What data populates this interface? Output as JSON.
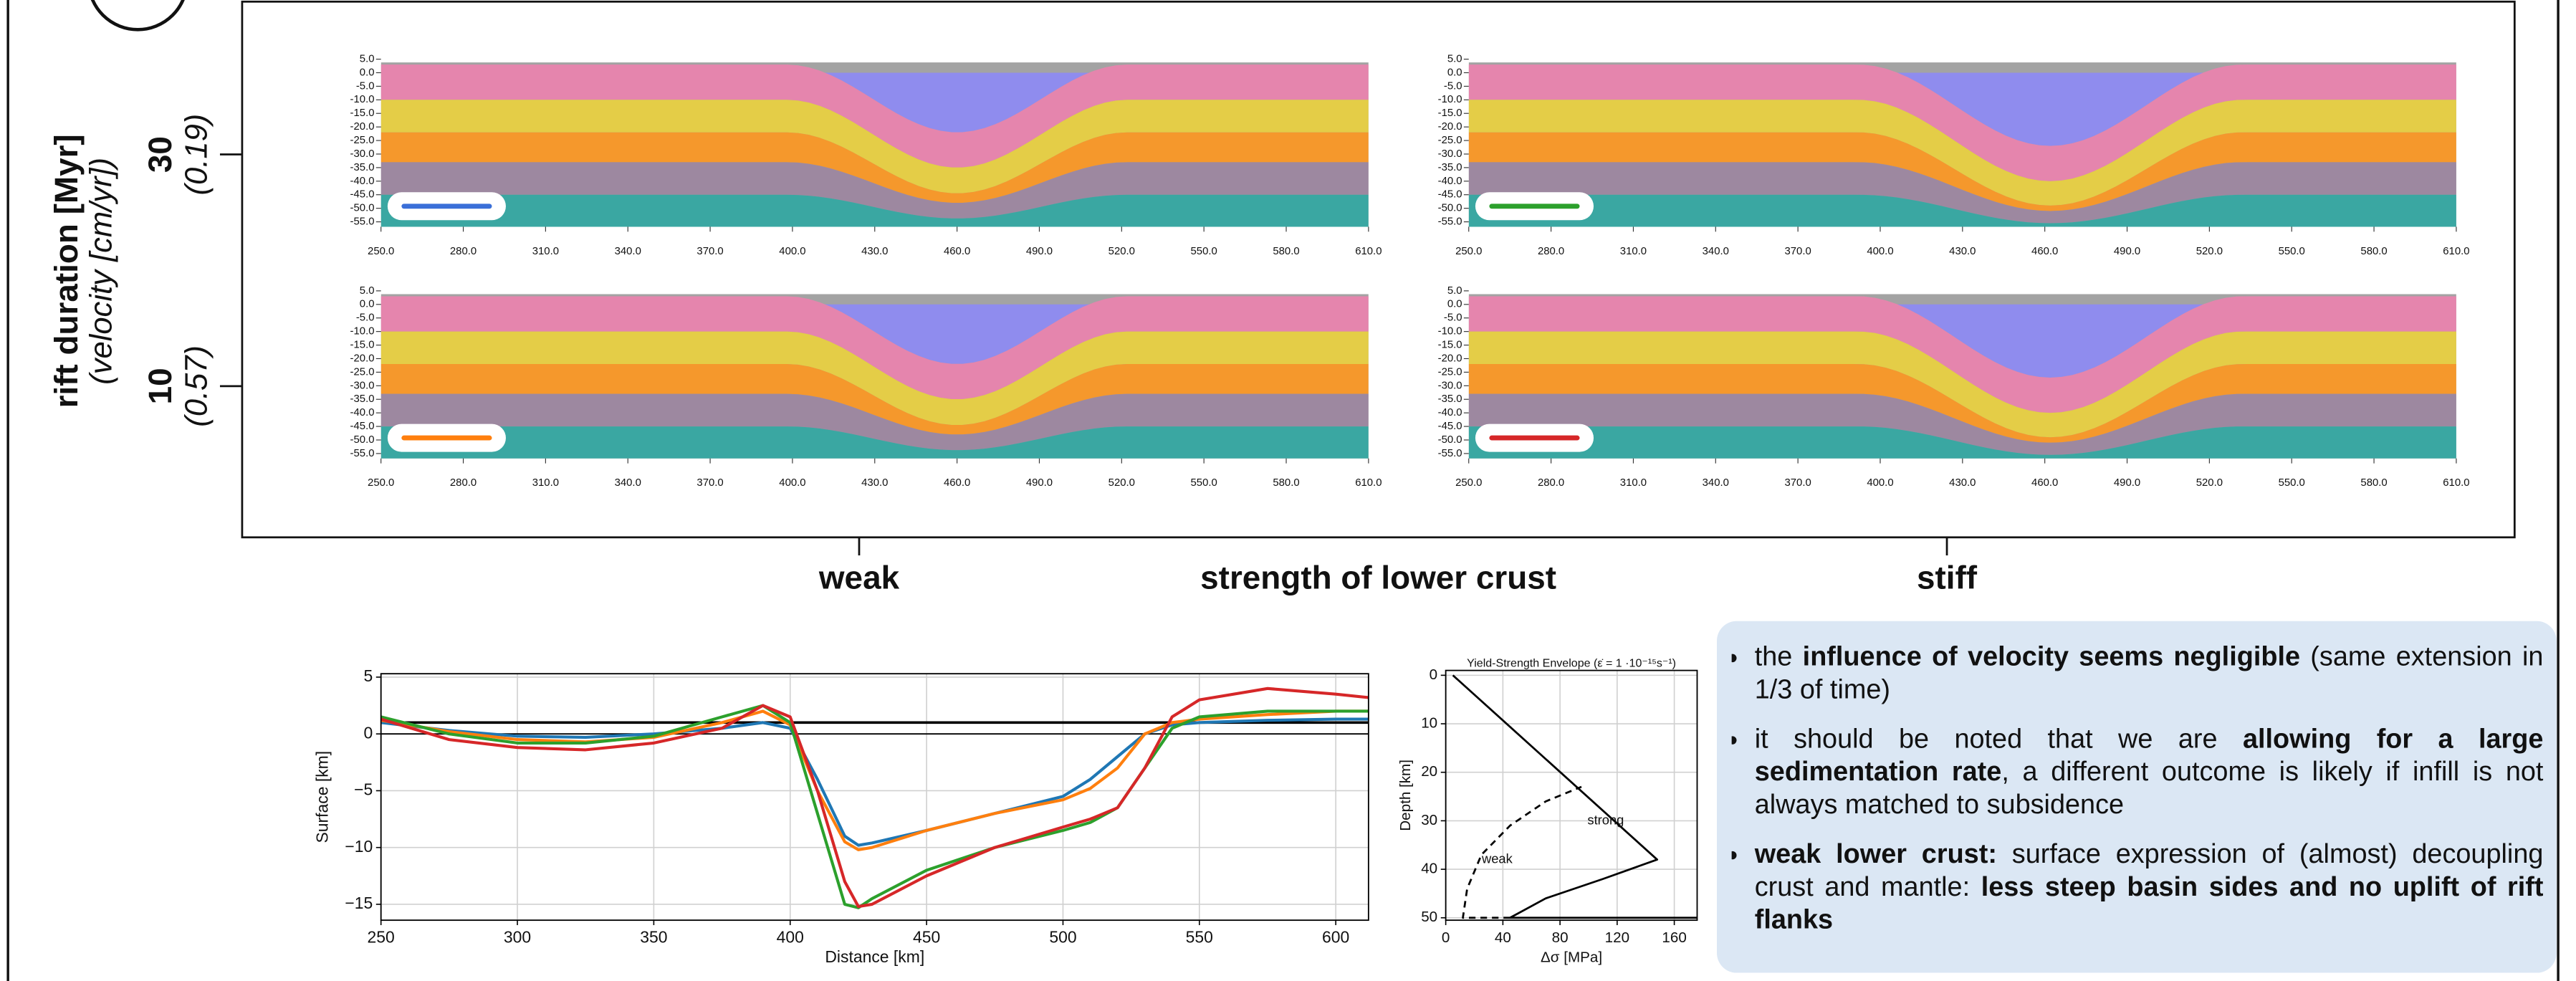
{
  "row_axis_title": "rift duration [Myr]",
  "row_axis_subtitle": "(velocity [cm/yr])",
  "row_labels": [
    {
      "duration": "30",
      "velocity": "(0.19)"
    },
    {
      "duration": "10",
      "velocity": "(0.57)"
    }
  ],
  "column_axis_title": "strength of lower crust",
  "column_labels": [
    "weak",
    "stiff"
  ],
  "model_panels": {
    "xlim": [
      250,
      610
    ],
    "ylim": [
      -55,
      5
    ],
    "xticks": [
      {
        "value": 250,
        "label": "250.0"
      },
      {
        "value": 280,
        "label": "280.0"
      },
      {
        "value": 310,
        "label": "310.0"
      },
      {
        "value": 340,
        "label": "340.0"
      },
      {
        "value": 370,
        "label": "370.0"
      },
      {
        "value": 400,
        "label": "400.0"
      },
      {
        "value": 430,
        "label": "430.0"
      },
      {
        "value": 460,
        "label": "460.0"
      },
      {
        "value": 490,
        "label": "490.0"
      },
      {
        "value": 520,
        "label": "520.0"
      },
      {
        "value": 550,
        "label": "550.0"
      },
      {
        "value": 580,
        "label": "580.0"
      },
      {
        "value": 610,
        "label": "610.0"
      }
    ],
    "yticks": [
      {
        "value": 5,
        "label": "5.0"
      },
      {
        "value": 0,
        "label": "0.0"
      },
      {
        "value": -5,
        "label": "-5.0"
      },
      {
        "value": -10,
        "label": "-10.0"
      },
      {
        "value": -15,
        "label": "-15.0"
      },
      {
        "value": -20,
        "label": "-20.0"
      },
      {
        "value": -25,
        "label": "-25.0"
      },
      {
        "value": -30,
        "label": "-30.0"
      },
      {
        "value": -35,
        "label": "-35.0"
      },
      {
        "value": -40,
        "label": "-40.0"
      },
      {
        "value": -45,
        "label": "-45.0"
      },
      {
        "value": -50,
        "label": "-50.0"
      },
      {
        "value": -55,
        "label": "-55.0"
      }
    ],
    "panels": [
      {
        "color": "#3a6fd8"
      },
      {
        "color": "#2ca02c"
      },
      {
        "color": "#ff7f0e"
      },
      {
        "color": "#d62728"
      }
    ]
  },
  "chart_data": [
    {
      "type": "line",
      "xlabel": "Distance [km]",
      "ylabel": "Surface [km]",
      "grid": true,
      "x": [
        250,
        275,
        300,
        325,
        350,
        375,
        390,
        400,
        410,
        420,
        425,
        430,
        450,
        475,
        500,
        510,
        520,
        530,
        540,
        550,
        575,
        600,
        612
      ],
      "series": [
        {
          "color": "#1f77b4",
          "values": [
            1.0,
            0.3,
            -0.2,
            -0.3,
            0.0,
            0.5,
            1.0,
            0.5,
            -4,
            -9,
            -9.8,
            -9.6,
            -8.5,
            -7,
            -5.5,
            -4,
            -2,
            0,
            0.8,
            1.0,
            1.2,
            1.3,
            1.3
          ]
        },
        {
          "color": "#ff7f0e",
          "values": [
            1.2,
            0.2,
            -0.5,
            -0.7,
            -0.3,
            1.0,
            2.0,
            0.8,
            -5,
            -9.5,
            -10.2,
            -10,
            -8.5,
            -7,
            -5.8,
            -4.8,
            -3,
            0,
            1.0,
            1.3,
            1.7,
            2.0,
            2.0
          ]
        },
        {
          "color": "#2ca02c",
          "values": [
            1.5,
            0,
            -0.8,
            -0.8,
            -0.2,
            1.5,
            2.5,
            1.0,
            -7,
            -15,
            -15.3,
            -14.5,
            -12,
            -10,
            -8.5,
            -7.8,
            -6.5,
            -3,
            0.5,
            1.5,
            2.0,
            2.0,
            2.0
          ]
        },
        {
          "color": "#d62728",
          "values": [
            1.3,
            -0.5,
            -1.2,
            -1.4,
            -0.8,
            0.5,
            2.5,
            1.5,
            -5,
            -13,
            -15.2,
            -15,
            -12.5,
            -10,
            -8.2,
            -7.5,
            -6.5,
            -3,
            1.5,
            3.0,
            4.0,
            3.5,
            3.2
          ]
        }
      ],
      "hlines": [
        1,
        0
      ],
      "xlim": [
        250,
        612
      ],
      "ylim": [
        -16.4,
        5.3
      ],
      "xticks": [
        250,
        300,
        350,
        400,
        450,
        500,
        550,
        600
      ],
      "yticks": [
        {
          "value": -15,
          "label": "−15"
        },
        {
          "value": -10,
          "label": "−10"
        },
        {
          "value": -5,
          "label": "−5"
        },
        0,
        5
      ]
    },
    {
      "type": "line",
      "title": "Yield-Strength Envelope (ε̇ = 1 ·10⁻¹⁵s⁻¹)",
      "xlabel": "Δσ [MPa]",
      "ylabel": "Depth [km]",
      "grid": true,
      "series": [
        {
          "color": "#000000",
          "dash": false,
          "x": [
            5,
            148,
            110,
            70,
            45,
            176
          ],
          "y": [
            0,
            38,
            42,
            46,
            50,
            50
          ]
        },
        {
          "color": "#000000",
          "dash": true,
          "x": [
            45,
            12,
            15,
            25,
            45,
            70,
            95
          ],
          "y": [
            50,
            50,
            44,
            37,
            31,
            26,
            23
          ]
        }
      ],
      "annotations": [
        "strong",
        "weak"
      ],
      "xlim": [
        0,
        176
      ],
      "ylim": [
        50.5,
        -1
      ],
      "xticks": [
        0,
        40,
        80,
        120,
        160
      ],
      "yticks": [
        0,
        10,
        20,
        30,
        40,
        50
      ]
    }
  ],
  "notes": [
    [
      {
        "text": "the "
      },
      {
        "text": "influence of velocity seems negligible",
        "bold": true
      },
      {
        "text": " (same extension in 1/3 of time)"
      }
    ],
    [
      {
        "text": "it should be noted that we are "
      },
      {
        "text": "allowing for a large sedimentation rate",
        "bold": true
      },
      {
        "text": ", a different outcome is likely if infill is not always matched to subsidence"
      }
    ],
    [
      {
        "text": "weak lower crust:",
        "bold": true
      },
      {
        "text": " surface expression of (almost) decoupling crust and mantle: "
      },
      {
        "text": "less steep basin sides and no uplift of rift flanks",
        "bold": true
      }
    ]
  ]
}
